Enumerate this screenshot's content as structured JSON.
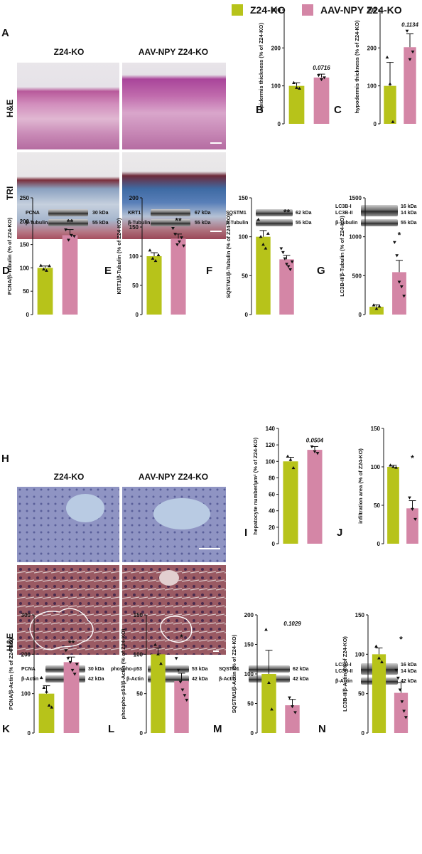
{
  "legend": {
    "items": [
      {
        "label": "Z24-KO",
        "color": "#b7c31a"
      },
      {
        "label": "AAV-NPY Z24-KO",
        "color": "#d486a6"
      }
    ]
  },
  "colors": {
    "z24": "#b7c31a",
    "aav": "#d486a6",
    "he": "#c88fb4",
    "tri": "#7d8fb0",
    "liver": "#8b92c0"
  },
  "panels": {
    "A": {
      "letter": "A",
      "col1": "Z24-KO",
      "col2": "AAV-NPY Z24-KO",
      "row1": "H&E",
      "row2": "TRI"
    },
    "H": {
      "letter": "H",
      "col1": "Z24-KO",
      "col2": "AAV-NPY Z24-KO",
      "row2": "H&E"
    }
  },
  "blots": {
    "D": {
      "top": "PCNA",
      "top_kda": "30 kDa",
      "ctrl": "β-Tubulin",
      "ctrl_kda": "55 kDa"
    },
    "E": {
      "top": "KRT1",
      "top_kda": "67 kDa",
      "ctrl": "β-Tubulin",
      "ctrl_kda": "55 kDa"
    },
    "F": {
      "top": "SQSTM1",
      "top_kda": "62 kDa",
      "ctrl": "β-Tubulin",
      "ctrl_kda": "55 kDa"
    },
    "G": {
      "top": "LC3B-I",
      "top_kda": "16 kDa",
      "mid": "LC3B-II",
      "mid_kda": "14 kDa",
      "ctrl": "β-Tubulin",
      "ctrl_kda": "55 kDa"
    },
    "K": {
      "top": "PCNA",
      "top_kda": "30 kDa",
      "ctrl": "β-Actin",
      "ctrl_kda": "42 kDa"
    },
    "L": {
      "top": "phospho-p53",
      "top_kda": "53 kDa",
      "ctrl": "β-Actin",
      "ctrl_kda": "42 kDa"
    },
    "M": {
      "top": "SQSTM1",
      "top_kda": "62 kDa",
      "ctrl": "β-Actin",
      "ctrl_kda": "42 kDa"
    },
    "N": {
      "top": "LC3B-I",
      "top_kda": "16 kDa",
      "mid": "LC3B-II",
      "mid_kda": "14 kDa",
      "ctrl": "β-Actin",
      "ctrl_kda": "42 kDa"
    }
  },
  "chart_data": [
    {
      "panel": "B",
      "type": "bar",
      "categories": [
        "Z24-KO",
        "AAV-NPY Z24-KO"
      ],
      "values": [
        100,
        122
      ],
      "errors": [
        8,
        9
      ],
      "points": [
        [
          108,
          95,
          93
        ],
        [
          128,
          117,
          122
        ]
      ],
      "ylabel": "epidermis thickness (% of Z24-KO)",
      "ylim": [
        0,
        300
      ],
      "yticks": [
        0,
        100,
        200,
        300
      ],
      "annotation": "0.0716",
      "annotation_italic": true
    },
    {
      "panel": "C",
      "type": "bar",
      "categories": [
        "Z24-KO",
        "AAV-NPY Z24-KO"
      ],
      "values": [
        100,
        202
      ],
      "errors": [
        62,
        35
      ],
      "points": [
        [
          175,
          105,
          5
        ],
        [
          245,
          170,
          190
        ]
      ],
      "ylabel": "hypodermis thickness (% of Z24-KO)",
      "ylim": [
        0,
        300
      ],
      "yticks": [
        0,
        100,
        200,
        300
      ],
      "annotation": "0.1134",
      "annotation_italic": true
    },
    {
      "panel": "D",
      "type": "bar",
      "categories": [
        "Z24-KO",
        "AAV-NPY Z24-KO"
      ],
      "values": [
        100,
        170
      ],
      "errors": [
        4,
        12
      ],
      "points": [
        [
          105,
          97,
          94,
          104
        ],
        [
          182,
          160,
          170,
          168
        ]
      ],
      "ylabel": "PCNA/β-Tubulin (% of Z24-KO)",
      "ylim": [
        0,
        250
      ],
      "yticks": [
        0,
        50,
        100,
        150,
        200,
        250
      ],
      "annotation": "**",
      "annotation_italic": false
    },
    {
      "panel": "E",
      "type": "bar",
      "categories": [
        "Z24-KO",
        "AAV-NPY Z24-KO"
      ],
      "values": [
        100,
        130
      ],
      "errors": [
        6,
        8
      ],
      "points": [
        [
          110,
          96,
          92,
          102
        ],
        [
          148,
          138,
          120,
          125,
          132,
          118
        ]
      ],
      "ylabel": "KRT1/β-Tubulin (% of Z24-KO)",
      "ylim": [
        0,
        200
      ],
      "yticks": [
        0,
        50,
        100,
        150,
        200
      ],
      "annotation": "**",
      "annotation_italic": false
    },
    {
      "panel": "F",
      "type": "bar",
      "categories": [
        "Z24-KO",
        "AAV-NPY Z24-KO"
      ],
      "values": [
        100,
        71
      ],
      "errors": [
        8,
        5
      ],
      "points": [
        [
          122,
          100,
          90,
          85,
          104
        ],
        [
          85,
          80,
          72,
          65,
          62,
          58,
          68
        ]
      ],
      "ylabel": "SQSTM1/β-Tubulin (% of Z24-KO)",
      "ylim": [
        0,
        150
      ],
      "yticks": [
        0,
        50,
        100,
        150
      ],
      "annotation": "**",
      "annotation_italic": false
    },
    {
      "panel": "G",
      "type": "bar",
      "categories": [
        "Z24-KO",
        "AAV-NPY Z24-KO"
      ],
      "values": [
        100,
        545
      ],
      "errors": [
        25,
        150
      ],
      "points": [
        [
          120,
          75,
          105
        ],
        [
          930,
          760,
          420,
          360,
          240
        ]
      ],
      "ylabel": "LC3B-II/β-Tubulin (% of Z24-KO)",
      "ylim": [
        0,
        1500
      ],
      "yticks": [
        0,
        500,
        1000,
        1500
      ],
      "annotation": "*",
      "annotation_italic": false
    },
    {
      "panel": "I",
      "type": "bar",
      "categories": [
        "Z24-KO",
        "AAV-NPY Z24-KO"
      ],
      "values": [
        100,
        114
      ],
      "errors": [
        5,
        4
      ],
      "points": [
        [
          106,
          102,
          92
        ],
        [
          118,
          112,
          110
        ]
      ],
      "ylabel": "hepatocyte number/µm² (% of Z24-KO)",
      "ylim": [
        0,
        140
      ],
      "yticks": [
        0,
        20,
        40,
        60,
        80,
        100,
        120,
        140
      ],
      "annotation": "0.0504",
      "annotation_italic": true
    },
    {
      "panel": "J",
      "type": "bar",
      "categories": [
        "Z24-KO",
        "AAV-NPY Z24-KO"
      ],
      "values": [
        100,
        46
      ],
      "errors": [
        2,
        10
      ],
      "points": [
        [
          102,
          100,
          99
        ],
        [
          60,
          45,
          32
        ]
      ],
      "ylabel": "infiltration area (% of Z24-KO)",
      "ylim": [
        0,
        150
      ],
      "yticks": [
        0,
        50,
        100,
        150
      ],
      "annotation": "*",
      "annotation_italic": false
    },
    {
      "panel": "K",
      "type": "bar",
      "categories": [
        "Z24-KO",
        "AAV-NPY Z24-KO"
      ],
      "values": [
        100,
        180
      ],
      "errors": [
        20,
        13
      ],
      "points": [
        [
          140,
          115,
          105,
          70,
          65
        ],
        [
          210,
          190,
          180,
          160,
          150,
          175
        ]
      ],
      "ylabel": "PCNA/β-Actin (% of Z24-KO)",
      "ylim": [
        0,
        300
      ],
      "yticks": [
        0,
        100,
        200,
        300
      ],
      "annotation": "**",
      "annotation_italic": false
    },
    {
      "panel": "L",
      "type": "bar",
      "categories": [
        "Z24-KO",
        "AAV-NPY Z24-KO"
      ],
      "values": [
        100,
        66
      ],
      "errors": [
        8,
        10
      ],
      "points": [
        [
          112,
          100,
          88
        ],
        [
          95,
          80,
          65,
          55,
          48,
          42
        ]
      ],
      "ylabel": "phospho-p53/β-Actin (% of Z24-KO)",
      "ylim": [
        0,
        150
      ],
      "yticks": [
        0,
        50,
        100,
        150
      ],
      "annotation": "*",
      "annotation_italic": false
    },
    {
      "panel": "M",
      "type": "bar",
      "categories": [
        "Z24-KO",
        "AAV-NPY Z24-KO"
      ],
      "values": [
        100,
        47
      ],
      "errors": [
        40,
        10
      ],
      "points": [
        [
          175,
          85,
          40
        ],
        [
          60,
          45,
          35
        ]
      ],
      "ylabel": "SQSTM1/β-Actin (% of Z24-KO)",
      "ylim": [
        0,
        200
      ],
      "yticks": [
        0,
        50,
        100,
        150,
        200
      ],
      "annotation": "0.1029",
      "annotation_italic": true
    },
    {
      "panel": "N",
      "type": "bar",
      "categories": [
        "Z24-KO",
        "AAV-NPY Z24-KO"
      ],
      "values": [
        100,
        51
      ],
      "errors": [
        8,
        13
      ],
      "points": [
        [
          110,
          95,
          90
        ],
        [
          80,
          70,
          55,
          40,
          28,
          20
        ]
      ],
      "ylabel": "LC3B-II/β-Actin (% of Z24-KO)",
      "ylim": [
        0,
        150
      ],
      "yticks": [
        0,
        50,
        100,
        150
      ],
      "annotation": "*",
      "annotation_italic": false
    }
  ]
}
